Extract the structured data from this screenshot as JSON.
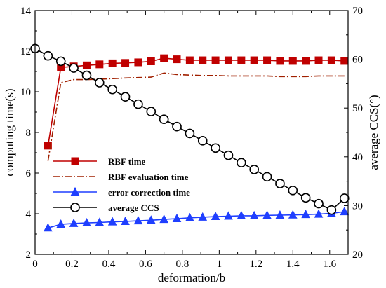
{
  "chart_data": {
    "type": "line",
    "xlabel": "deformation/b",
    "ylabel": "computing time(s)",
    "y2label": "average CCS(°)",
    "xlim": [
      0,
      1.7
    ],
    "ylim": [
      2,
      14
    ],
    "y2lim": [
      20,
      70
    ],
    "x_ticks": [
      "0",
      "0.2",
      "0.4",
      "0.6",
      "0.8",
      "1",
      "1.2",
      "1.4",
      "1.6"
    ],
    "y_ticks": [
      "2",
      "4",
      "6",
      "8",
      "10",
      "12",
      "14"
    ],
    "y2_ticks": [
      "20",
      "30",
      "40",
      "50",
      "60",
      "70"
    ],
    "legend_position": "lower-left",
    "series": [
      {
        "name": "RBF time",
        "axis": "left",
        "color": "#c00000",
        "line_style": "solid",
        "marker": "filled-square",
        "x": [
          0.07,
          0.14,
          0.21,
          0.28,
          0.35,
          0.42,
          0.49,
          0.56,
          0.63,
          0.7,
          0.77,
          0.84,
          0.91,
          0.98,
          1.05,
          1.12,
          1.19,
          1.26,
          1.33,
          1.4,
          1.47,
          1.54,
          1.61,
          1.68
        ],
        "y": [
          7.35,
          11.2,
          11.25,
          11.3,
          11.35,
          11.4,
          11.42,
          11.45,
          11.5,
          11.65,
          11.6,
          11.55,
          11.55,
          11.55,
          11.55,
          11.55,
          11.55,
          11.55,
          11.52,
          11.52,
          11.52,
          11.55,
          11.55,
          11.52
        ]
      },
      {
        "name": "RBF evaluation time",
        "axis": "left",
        "color": "#a02000",
        "line_style": "dash-dot",
        "marker": "none",
        "x": [
          0.07,
          0.14,
          0.21,
          0.28,
          0.35,
          0.42,
          0.49,
          0.56,
          0.63,
          0.7,
          0.77,
          0.84,
          0.91,
          0.98,
          1.05,
          1.12,
          1.19,
          1.26,
          1.33,
          1.4,
          1.47,
          1.54,
          1.61,
          1.68
        ],
        "y": [
          6.6,
          10.45,
          10.6,
          10.6,
          10.62,
          10.65,
          10.68,
          10.7,
          10.72,
          10.92,
          10.85,
          10.82,
          10.8,
          10.8,
          10.78,
          10.78,
          10.78,
          10.78,
          10.75,
          10.75,
          10.75,
          10.78,
          10.78,
          10.78
        ]
      },
      {
        "name": "error correction time",
        "axis": "left",
        "color": "#1f3fff",
        "line_style": "solid",
        "marker": "filled-triangle",
        "x": [
          0.07,
          0.14,
          0.21,
          0.28,
          0.35,
          0.42,
          0.49,
          0.56,
          0.63,
          0.7,
          0.77,
          0.84,
          0.91,
          0.98,
          1.05,
          1.12,
          1.19,
          1.26,
          1.33,
          1.4,
          1.47,
          1.54,
          1.61,
          1.68
        ],
        "y": [
          3.3,
          3.48,
          3.52,
          3.55,
          3.57,
          3.6,
          3.62,
          3.65,
          3.68,
          3.72,
          3.76,
          3.8,
          3.83,
          3.86,
          3.88,
          3.9,
          3.9,
          3.92,
          3.93,
          3.94,
          3.96,
          3.98,
          4.02,
          4.1
        ]
      },
      {
        "name": "average CCS",
        "axis": "right",
        "color": "#000000",
        "line_style": "solid",
        "marker": "open-circle",
        "x": [
          0,
          0.07,
          0.14,
          0.21,
          0.28,
          0.35,
          0.42,
          0.49,
          0.56,
          0.63,
          0.7,
          0.77,
          0.84,
          0.91,
          0.98,
          1.05,
          1.12,
          1.19,
          1.26,
          1.33,
          1.4,
          1.47,
          1.54,
          1.61,
          1.68
        ],
        "y": [
          62.2,
          60.7,
          59.6,
          58.2,
          56.7,
          55.2,
          53.8,
          52.3,
          50.8,
          49.3,
          47.7,
          46.2,
          44.8,
          43.3,
          41.8,
          40.3,
          38.8,
          37.4,
          35.9,
          34.5,
          33.1,
          31.6,
          30.4,
          29.1,
          31.5
        ]
      }
    ]
  }
}
